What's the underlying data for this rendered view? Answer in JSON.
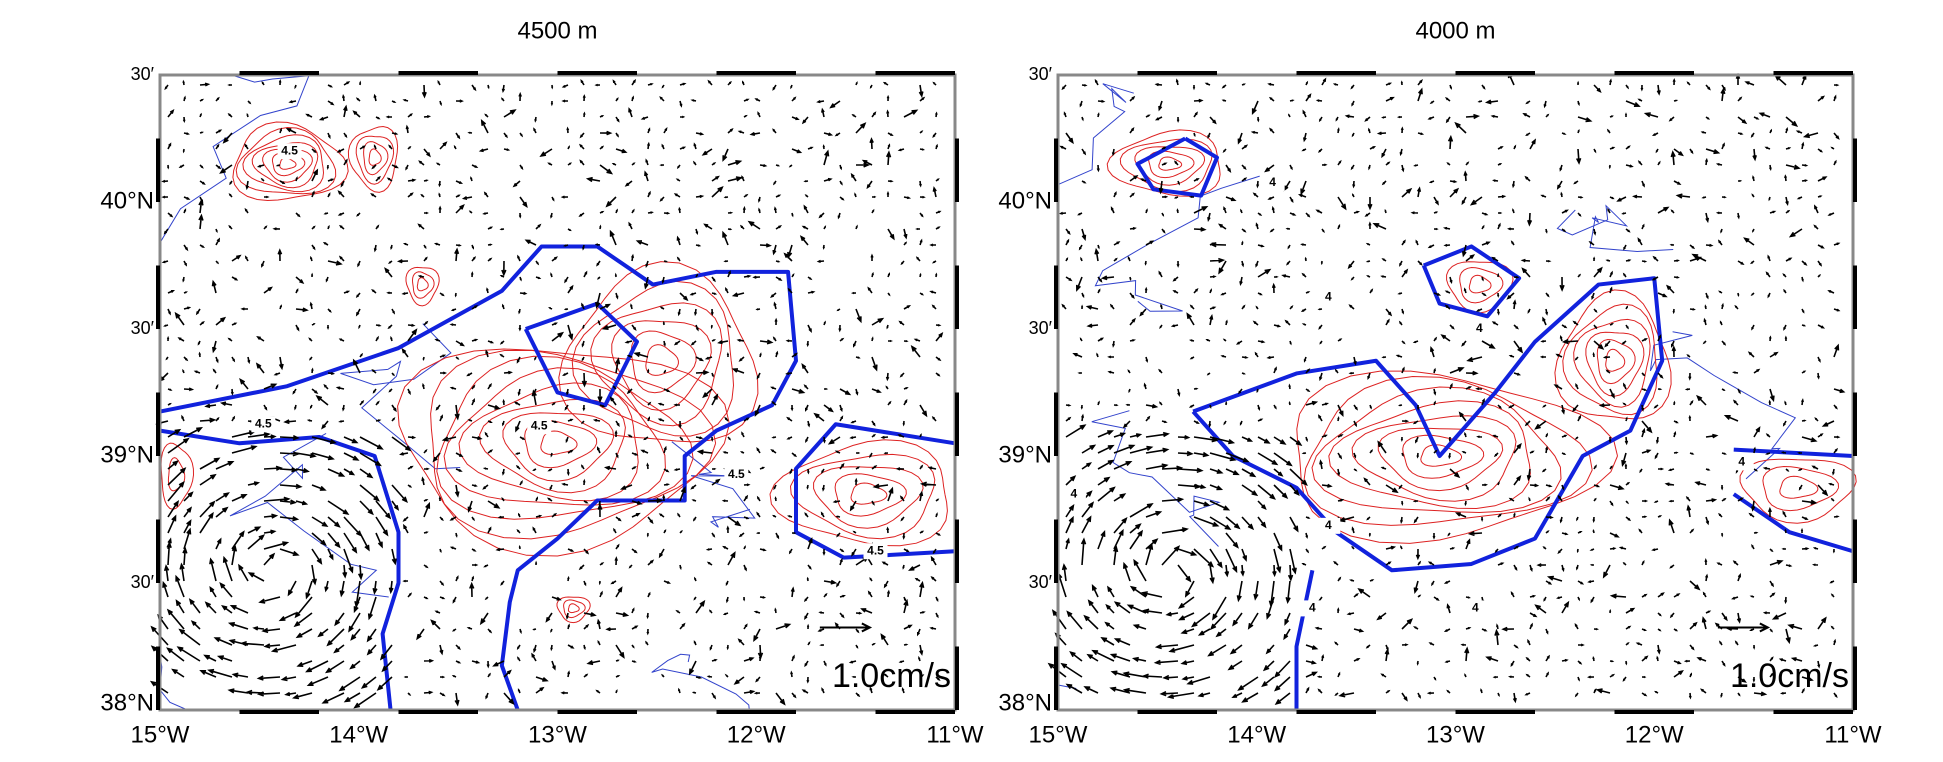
{
  "panels": [
    {
      "title": "4500 m",
      "y_labels": [
        "30′",
        "40°N",
        "30′",
        "39°N",
        "30′",
        "38°N"
      ],
      "x_labels": [
        "15°W",
        "14°W",
        "13°W",
        "12°W",
        "11°W"
      ],
      "contour_labels": [
        "4.5",
        "4.5",
        "4.5",
        "4.5",
        "4.5"
      ],
      "scale_label": "1.0cm/s"
    },
    {
      "title": "4000 m",
      "y_labels": [
        "30′",
        "40°N",
        "30′",
        "39°N",
        "30′",
        "38°N"
      ],
      "x_labels": [
        "15°W",
        "14°W",
        "13°W",
        "12°W",
        "11°W"
      ],
      "contour_labels": [
        "4",
        "4",
        "4",
        "4",
        "4",
        "4",
        "4",
        "4"
      ],
      "scale_label": "1.0cm/s"
    }
  ]
}
